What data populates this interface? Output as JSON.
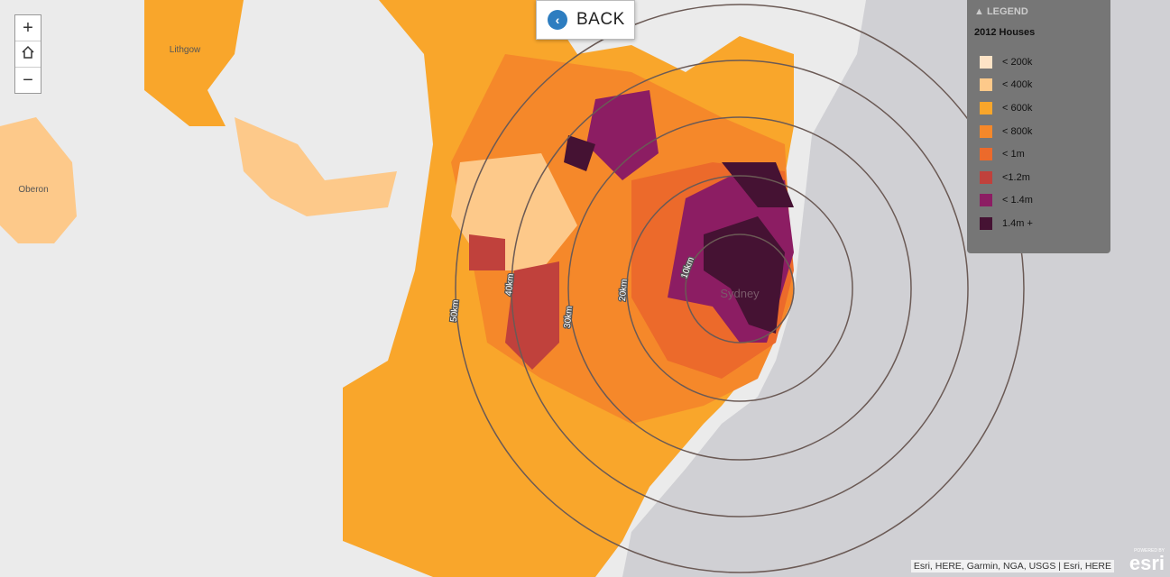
{
  "zoom_controls": {
    "zoom_in": "+",
    "zoom_out": "−"
  },
  "back_button": {
    "label": "BACK"
  },
  "places": {
    "lithgow": "Lithgow",
    "oberon": "Oberon",
    "sydney": "Sydney"
  },
  "rings": [
    "10km",
    "20km",
    "30km",
    "40km",
    "50km"
  ],
  "legend": {
    "title": "LEGEND",
    "layer": "2012 Houses",
    "items": [
      {
        "label": "< 200k",
        "color": "#fde3c6"
      },
      {
        "label": "< 400k",
        "color": "#fdc98a"
      },
      {
        "label": "< 600k",
        "color": "#f9a62b"
      },
      {
        "label": "< 800k",
        "color": "#f5882a"
      },
      {
        "label": "< 1m",
        "color": "#ec6a2b"
      },
      {
        "label": "<1.2m",
        "color": "#c0413c"
      },
      {
        "label": "< 1.4m",
        "color": "#8c1d63"
      },
      {
        "label": "1.4m +",
        "color": "#451233"
      }
    ]
  },
  "attribution": "Esri, HERE, Garmin, NGA, USGS | Esri, HERE",
  "logo": {
    "powered_by": "POWERED BY",
    "brand": "esri"
  }
}
